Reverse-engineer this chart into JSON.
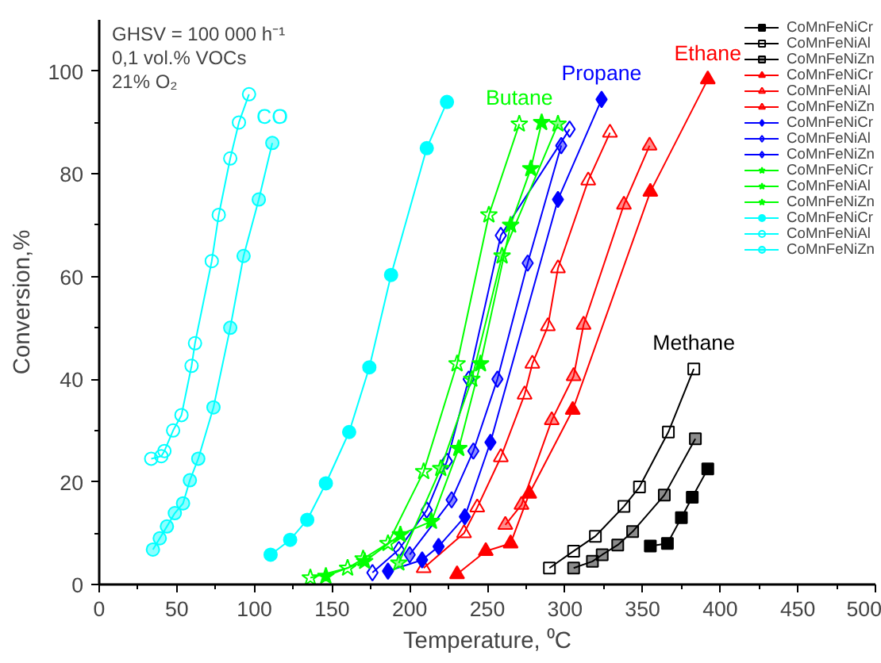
{
  "chart_data": {
    "type": "line",
    "xlabel": "Temperature, ⁰C",
    "ylabel": "Conversion,%",
    "xlim": [
      0,
      500
    ],
    "xticks": [
      0,
      50,
      100,
      150,
      200,
      250,
      300,
      350,
      400,
      450,
      500
    ],
    "ylim": [
      0,
      110
    ],
    "yticks": [
      0,
      20,
      40,
      60,
      80,
      100
    ],
    "grid": false,
    "legend": "top right",
    "series": [
      {
        "name": "CoMnFeNiCr",
        "color": "#000000",
        "marker": "square",
        "x": [
          355,
          366,
          375,
          382,
          392
        ],
        "values": [
          7.5,
          8,
          13,
          17,
          22.5
        ]
      },
      {
        "name": "CoMnFeNiAl",
        "color": "#000000",
        "marker": "square",
        "x": [
          290,
          305.6,
          319.6,
          338,
          348,
          366.6,
          383
        ],
        "values": [
          3.2,
          6.5,
          9.4,
          15.2,
          19,
          29.7,
          42
        ]
      },
      {
        "name": "CoMnFeNiZn",
        "color": "#000000",
        "marker": "square",
        "x": [
          305.6,
          317.7,
          324,
          334,
          343.6,
          364,
          384
        ],
        "values": [
          3.2,
          4.5,
          5.8,
          7.7,
          10.3,
          17.4,
          28.4
        ]
      },
      {
        "name": "CoMnFeNiCr",
        "color": "#ff0000",
        "marker": "triangle",
        "x": [
          230.5,
          249,
          265,
          277,
          305,
          355,
          392
        ],
        "values": [
          2,
          6.5,
          8,
          17.7,
          34,
          76.5,
          98.4
        ]
      },
      {
        "name": "CoMnFeNiAl",
        "color": "#ff0000",
        "marker": "triangle",
        "x": [
          209,
          235,
          243.5,
          258.7,
          274,
          279,
          289,
          295.5,
          315,
          329
        ],
        "values": [
          3.2,
          10,
          15,
          24.8,
          37,
          43,
          50.3,
          61.6,
          78.7,
          88
        ]
      },
      {
        "name": "CoMnFeNiZn",
        "color": "#ff0000",
        "marker": "triangle",
        "x": [
          261.6,
          272,
          291.5,
          305.6,
          312,
          338,
          354.5
        ],
        "values": [
          11.6,
          15.5,
          32,
          40.6,
          50.6,
          74,
          85.5
        ]
      },
      {
        "name": "CoMnFeNiCr",
        "color": "#0000ff",
        "marker": "diamond",
        "x": [
          186,
          208,
          218.6,
          235.5,
          252,
          295.5,
          323.6
        ],
        "values": [
          2.6,
          4.8,
          7.4,
          13.2,
          27.7,
          75,
          94.5
        ]
      },
      {
        "name": "CoMnFeNiAl",
        "color": "#0000ff",
        "marker": "diamond",
        "x": [
          176,
          193,
          211,
          224,
          238,
          258.7,
          303
        ],
        "values": [
          2.3,
          6.8,
          14.5,
          24,
          40,
          68,
          88.7
        ]
      },
      {
        "name": "CoMnFeNiZn",
        "color": "#0000ff",
        "marker": "diamond",
        "x": [
          200,
          227,
          241,
          256.5,
          276,
          297.6
        ],
        "values": [
          5.8,
          16.5,
          26,
          40,
          62.6,
          85.5
        ]
      },
      {
        "name": "CoMnFeNiCr",
        "color": "#00ff00",
        "marker": "star",
        "x": [
          146,
          171,
          194,
          214,
          231.6,
          245.6,
          265,
          278,
          285
        ],
        "values": [
          1.6,
          4.5,
          9.7,
          12.3,
          26.5,
          43,
          70,
          81,
          90
        ]
      },
      {
        "name": "CoMnFeNiAl",
        "color": "#00ff00",
        "marker": "star",
        "x": [
          136,
          160,
          170,
          186,
          209,
          230.5,
          251,
          270.6
        ],
        "values": [
          1.3,
          3.2,
          5,
          8,
          22,
          43,
          72,
          89.7
        ]
      },
      {
        "name": "CoMnFeNiZn",
        "color": "#00ff00",
        "marker": "star",
        "x": [
          193,
          220,
          240,
          259.5,
          295.5
        ],
        "values": [
          4.2,
          22.6,
          40,
          64,
          89.7
        ]
      },
      {
        "name": "CoMnFeNiCr",
        "color": "#00ffff",
        "marker": "circle",
        "x": [
          110.4,
          123,
          134,
          146,
          161,
          174,
          188,
          211,
          224
        ],
        "values": [
          5.8,
          8.7,
          12.6,
          19.7,
          29.7,
          42.3,
          60.3,
          85,
          94
        ]
      },
      {
        "name": "CoMnFeNiAl",
        "color": "#00ffff",
        "marker": "circle",
        "x": [
          33.5,
          40,
          42,
          47.6,
          53,
          59.5,
          61.7,
          72.5,
          77,
          84.4,
          90,
          96.5
        ],
        "values": [
          24.5,
          25,
          26,
          30,
          33,
          42.6,
          47,
          63,
          72,
          83,
          90,
          95.5
        ]
      },
      {
        "name": "CoMnFeNiZn",
        "color": "#00ffff",
        "marker": "circle",
        "x": [
          34.6,
          39,
          43.6,
          48.7,
          54,
          58.4,
          63.8,
          73.6,
          84.4,
          93,
          102.8,
          111.5
        ],
        "values": [
          6.8,
          9,
          11.3,
          13.9,
          15.8,
          20.3,
          24.5,
          34.5,
          50,
          64,
          75,
          86
        ]
      }
    ],
    "annotations": [
      "GHSV = 100 000 h⁻¹",
      "0,1 vol.% VOCs",
      "21% O₂",
      {
        "text": "CO",
        "x": 111.5,
        "y": 86
      },
      {
        "text": "Butane",
        "x": 270.6,
        "y": 89.7
      },
      {
        "text": "Propane",
        "x": 323.6,
        "y": 94.5
      },
      {
        "text": "Ethane",
        "x": 392,
        "y": 98.4
      },
      {
        "text": "Methane",
        "x": 383,
        "y": 42
      }
    ]
  }
}
